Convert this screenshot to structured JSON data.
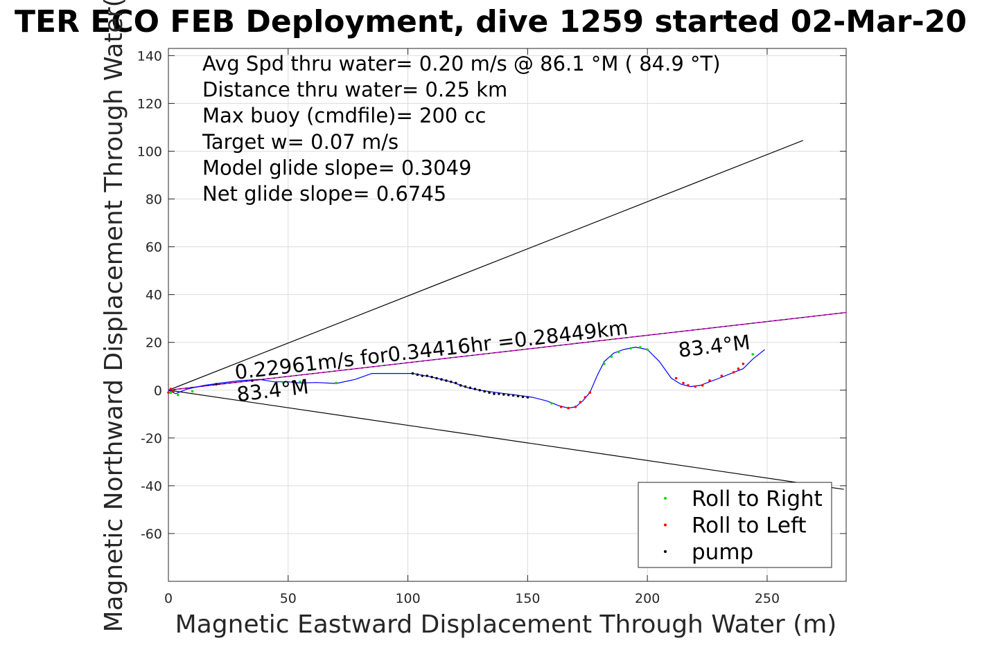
{
  "chart_data": {
    "type": "line",
    "title": "TER ECO FEB Deployment, dive 1259 started 02-Mar-20",
    "xlabel": "Magnetic Eastward Displacement Through Water (m)",
    "ylabel": "Magnetic Northward Displacement Through Water(",
    "xlim": [
      0,
      283
    ],
    "ylim": [
      -80,
      143
    ],
    "xticks": [
      0,
      50,
      100,
      150,
      200,
      250
    ],
    "yticks": [
      -60,
      -40,
      -20,
      0,
      20,
      40,
      60,
      80,
      100,
      120,
      140
    ],
    "grid": true,
    "legend_position": "bottom-right",
    "annotations": [
      "Avg Spd thru water=  0.20 m/s @  86.1 °M ( 84.9 °T)",
      "Distance thru water=  0.25 km",
      "Max buoy (cmdfile)= 200 cc",
      "Target w= 0.07 m/s",
      "Model glide slope= 0.3049",
      "Net glide slope= 0.6745"
    ],
    "line_labels": {
      "speed": "0.22961m/s for0.34416hr =0.28449km",
      "heading_start": "83.4°M",
      "heading_end": "83.4°M"
    },
    "colors": {
      "track": "#0000ff",
      "heading_line": "#cc00cc",
      "cone": "#000000",
      "roll_right": "#00dd00",
      "roll_left": "#ff0000",
      "pump": "#000000"
    },
    "cone_lines": [
      {
        "name": "upper",
        "x": [
          0,
          265
        ],
        "y": [
          0,
          104.5
        ]
      },
      {
        "name": "lower",
        "x": [
          0,
          282
        ],
        "y": [
          0,
          -41.5
        ]
      }
    ],
    "heading_line": {
      "x": [
        0,
        283
      ],
      "y": [
        0,
        32.5
      ]
    },
    "track": {
      "x": [
        0,
        3,
        8,
        15,
        22,
        30,
        38,
        44,
        50,
        55,
        62,
        70,
        78,
        85,
        90,
        97,
        102,
        110,
        118,
        125,
        130,
        137,
        145,
        152,
        158,
        163,
        167,
        170,
        173,
        176,
        179,
        182,
        186,
        190,
        195,
        200,
        205,
        210,
        214,
        218,
        222,
        226,
        230,
        235,
        240,
        244,
        249
      ],
      "y": [
        0,
        -1.5,
        0.5,
        2,
        3,
        4,
        4.5,
        3.5,
        3.5,
        3,
        3.2,
        2.8,
        4.5,
        7,
        7,
        7,
        7,
        5.5,
        3.5,
        1,
        0,
        -1,
        -2,
        -3,
        -4.5,
        -6.5,
        -7.5,
        -7,
        -4.5,
        -1,
        6,
        12,
        15.5,
        17,
        18,
        17,
        12,
        5,
        2.5,
        1.5,
        2,
        3.5,
        5,
        7,
        9,
        13,
        17
      ]
    },
    "markers": {
      "roll_right": {
        "x": [
          1,
          4,
          10,
          48,
          55,
          70,
          160,
          182,
          185,
          188,
          193,
          197,
          200,
          244
        ],
        "y": [
          -1,
          -2,
          -0.5,
          3,
          3.5,
          3,
          -5.5,
          11,
          14,
          16,
          17.5,
          18,
          17,
          15
        ]
      },
      "roll_left": {
        "x": [
          0,
          1,
          2,
          164,
          167,
          170,
          172,
          174,
          176,
          212,
          215,
          217,
          220,
          223,
          226,
          231,
          236,
          238,
          240
        ],
        "y": [
          -1,
          0.5,
          -0.5,
          -7,
          -7.5,
          -7,
          -5,
          -3,
          -1,
          5,
          3,
          2,
          1.5,
          2,
          4,
          6,
          7.5,
          9,
          11
        ]
      },
      "pump": {
        "x": [
          102,
          104,
          106,
          108,
          110,
          112,
          114,
          116,
          118,
          120,
          122,
          124,
          126,
          128,
          130,
          132,
          134,
          136,
          138,
          140,
          142,
          144,
          146,
          148,
          150,
          20,
          35,
          52
        ],
        "y": [
          7,
          6.5,
          6,
          6,
          5.5,
          5,
          4.5,
          4,
          3.5,
          3,
          2,
          1.5,
          1,
          0.5,
          0,
          -0.5,
          -1,
          -1.5,
          -1.5,
          -1.8,
          -2,
          -2.2,
          -2.5,
          -2.8,
          -3,
          2.5,
          4,
          3.5
        ]
      }
    },
    "legend": [
      {
        "label": "Roll to Right",
        "color": "#00dd00"
      },
      {
        "label": "Roll to Left",
        "color": "#ff0000"
      },
      {
        "label": "pump",
        "color": "#000000"
      }
    ]
  }
}
